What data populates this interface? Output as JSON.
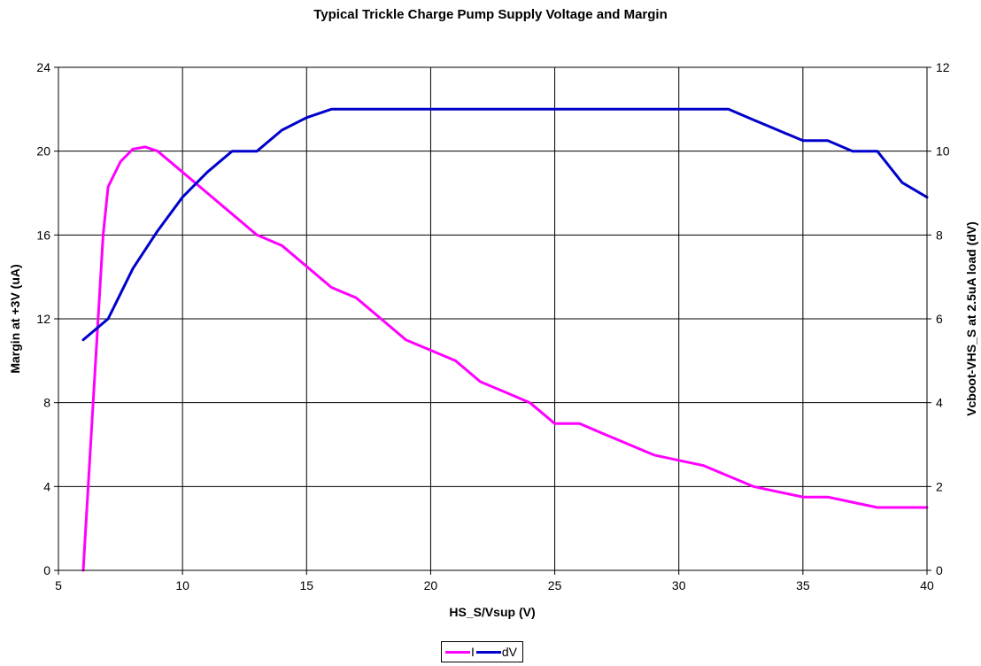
{
  "chart_data": {
    "type": "line",
    "title": "Typical Trickle Charge Pump Supply Voltage and Margin",
    "xlabel": "HS_S/Vsup (V)",
    "ylabel_left": "Margin at +3V (uA)",
    "ylabel_right": "Vcboot-VHS_S at 2.5uA load (dV)",
    "xlim": [
      5,
      40
    ],
    "xticks": [
      5,
      10,
      15,
      20,
      25,
      30,
      35,
      40
    ],
    "ylim_left": [
      0,
      24
    ],
    "yticks_left": [
      0,
      4,
      8,
      12,
      16,
      20,
      24
    ],
    "ylim_right": [
      0,
      12
    ],
    "yticks_right": [
      0,
      2,
      4,
      6,
      8,
      10,
      12
    ],
    "grid": true,
    "legend_position": "bottom-center",
    "series": [
      {
        "name": "I",
        "axis": "left",
        "color": "#ff00ff",
        "x": [
          6,
          6.5,
          6.8,
          7,
          7.5,
          8,
          8.5,
          9,
          10,
          11,
          12,
          13,
          14,
          15,
          16,
          17,
          18,
          19,
          20,
          21,
          22,
          23,
          24,
          25,
          26,
          27,
          28,
          29,
          30,
          31,
          32,
          33,
          34,
          35,
          36,
          37,
          38,
          39,
          40
        ],
        "values": [
          0,
          10,
          16,
          18.3,
          19.5,
          20.1,
          20.2,
          20,
          19,
          18,
          17,
          16,
          15.5,
          14.5,
          13.5,
          13,
          12,
          11,
          10.5,
          10,
          9,
          8.5,
          8,
          7,
          7,
          6.5,
          6,
          5.5,
          5.25,
          5,
          4.5,
          4,
          3.75,
          3.5,
          3.5,
          3.25,
          3,
          3,
          3
        ]
      },
      {
        "name": "dV",
        "axis": "right",
        "color": "#0000cc",
        "x": [
          6,
          7,
          8,
          9,
          10,
          11,
          12,
          13,
          14,
          15,
          16,
          17,
          18,
          19,
          20,
          21,
          22,
          23,
          24,
          25,
          26,
          27,
          28,
          29,
          30,
          31,
          32,
          33,
          34,
          35,
          36,
          37,
          38,
          39,
          40
        ],
        "values": [
          5.5,
          6,
          7.2,
          8.1,
          8.9,
          9.5,
          10,
          10,
          10.5,
          10.8,
          11,
          11,
          11,
          11,
          11,
          11,
          11,
          11,
          11,
          11,
          11,
          11,
          11,
          11,
          11,
          11,
          11,
          10.75,
          10.5,
          10.25,
          10.25,
          10,
          10,
          9.25,
          8.9
        ]
      }
    ]
  }
}
